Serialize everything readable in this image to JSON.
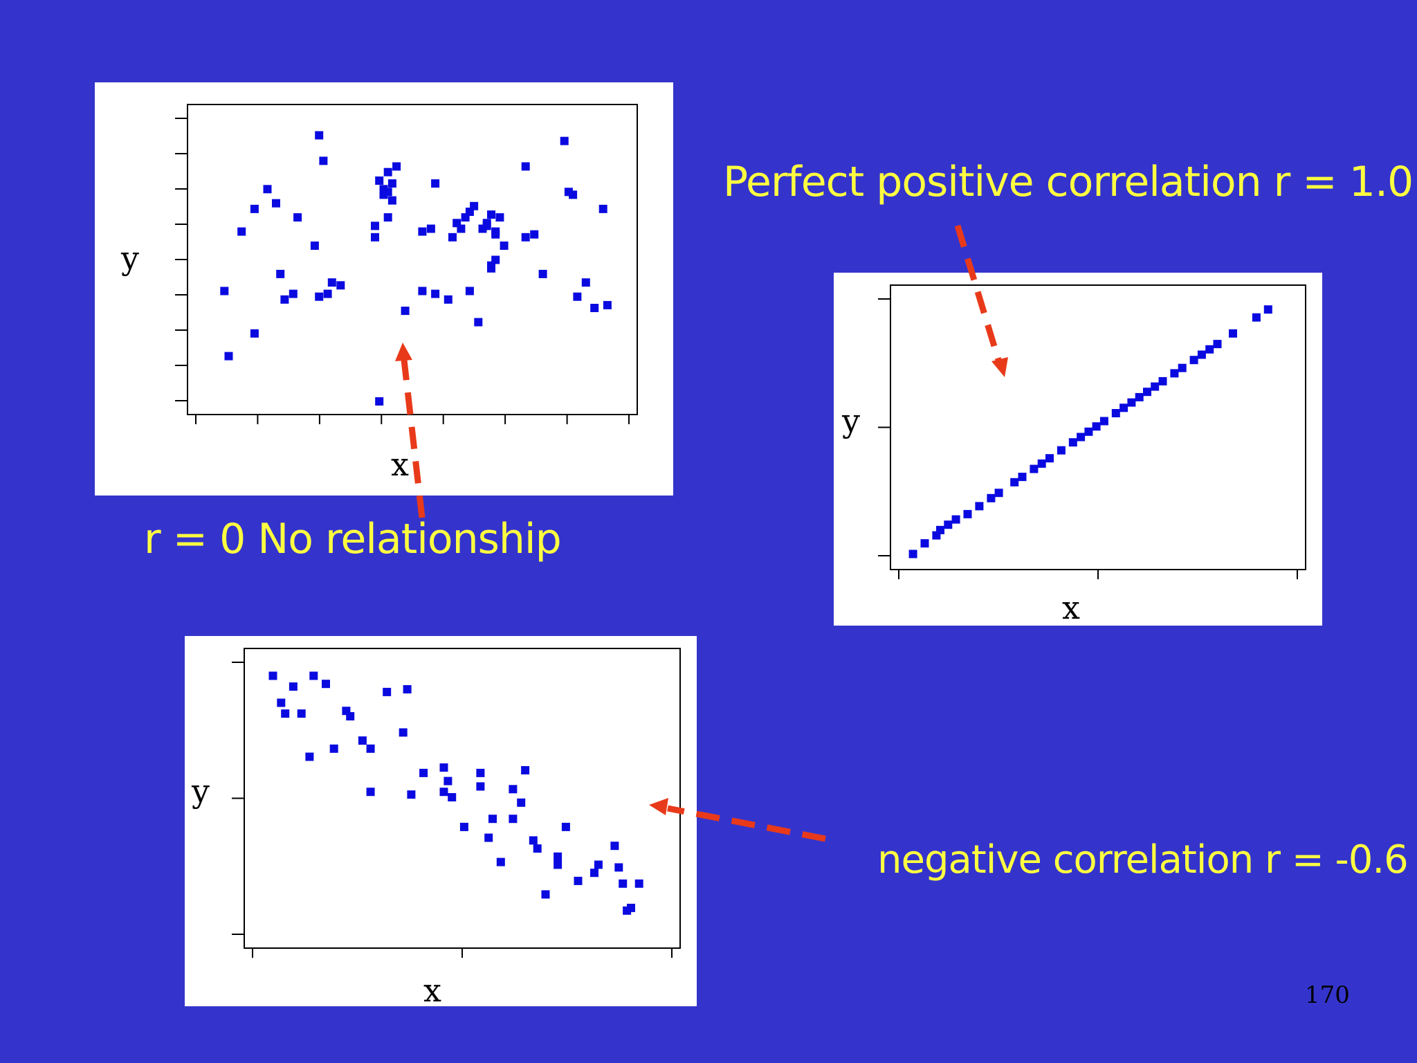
{
  "colors": {
    "background": "#3434cc",
    "panel": "#ffffff",
    "points": "#0a0ae0",
    "caption_text": "#ffff40",
    "arrow": "#e83a1a"
  },
  "captions": {
    "no_relationship": "r = 0 No relationship",
    "perfect_positive": "Perfect positive correlation r = 1.0",
    "negative": "negative correlation r = -0.6"
  },
  "page_number": "170",
  "chart_data": [
    {
      "type": "scatter",
      "xlabel": "x",
      "ylabel": "y",
      "xlim": [
        0,
        10
      ],
      "ylim": [
        0,
        10
      ],
      "grid": false,
      "x": [
        0.6,
        0.7,
        1.0,
        1.3,
        1.6,
        1.8,
        1.9,
        1.3,
        2.0,
        2.2,
        2.3,
        2.7,
        2.8,
        2.8,
        2.9,
        3.0,
        3.1,
        3.3,
        4.1,
        4.1,
        4.2,
        4.3,
        4.4,
        4.4,
        4.4,
        4.5,
        4.6,
        4.8,
        4.3,
        4.2,
        4.5,
        5.2,
        5.4,
        5.5,
        5.2,
        5.5,
        5.8,
        5.9,
        6.0,
        6.1,
        6.2,
        6.3,
        6.4,
        6.6,
        6.7,
        6.8,
        6.9,
        6.3,
        6.9,
        7.0,
        7.1,
        6.9,
        6.8,
        6.5,
        6.7,
        6.8,
        7.6,
        7.6,
        7.8,
        8.0,
        8.5,
        8.6,
        8.7,
        8.8,
        9.0,
        9.2,
        9.4,
        9.5
      ],
      "y": [
        3.9,
        1.6,
        6.0,
        6.8,
        7.5,
        7.0,
        4.5,
        2.4,
        3.6,
        3.8,
        6.5,
        5.5,
        9.4,
        3.7,
        8.5,
        3.8,
        4.2,
        4.1,
        6.2,
        5.8,
        7.8,
        7.3,
        8.1,
        7.4,
        6.5,
        7.1,
        8.3,
        3.2,
        7.5,
        0.0,
        7.7,
        6.0,
        6.1,
        7.7,
        3.9,
        3.8,
        3.6,
        5.8,
        6.3,
        6.1,
        6.5,
        6.7,
        6.9,
        6.1,
        6.3,
        6.6,
        5.9,
        3.9,
        6.0,
        6.5,
        5.5,
        5.0,
        4.8,
        2.8,
        6.2,
        4.7,
        8.3,
        5.8,
        5.9,
        4.5,
        9.2,
        7.4,
        7.3,
        3.7,
        4.2,
        3.3,
        6.8,
        3.4
      ]
    },
    {
      "type": "scatter",
      "xlabel": "x",
      "ylabel": "y",
      "xlim": [
        0,
        10
      ],
      "ylim": [
        0,
        10
      ],
      "grid": false,
      "x": [
        0.4,
        0.7,
        1.0,
        1.1,
        1.3,
        1.5,
        1.8,
        2.1,
        2.4,
        2.6,
        3.0,
        3.2,
        3.5,
        3.7,
        3.9,
        4.2,
        4.5,
        4.7,
        4.9,
        5.1,
        5.3,
        5.6,
        5.8,
        6.0,
        6.2,
        6.4,
        6.6,
        6.8,
        7.1,
        7.3,
        7.6,
        7.8,
        8.0,
        8.2,
        8.6,
        9.2,
        9.5
      ],
      "y": [
        0.3,
        0.7,
        1.0,
        1.2,
        1.4,
        1.6,
        1.8,
        2.1,
        2.4,
        2.6,
        3.0,
        3.2,
        3.5,
        3.7,
        3.9,
        4.2,
        4.5,
        4.7,
        4.9,
        5.1,
        5.3,
        5.6,
        5.8,
        6.0,
        6.2,
        6.4,
        6.6,
        6.8,
        7.1,
        7.3,
        7.6,
        7.8,
        8.0,
        8.2,
        8.6,
        9.2,
        9.5
      ]
    },
    {
      "type": "scatter",
      "xlabel": "x",
      "ylabel": "y",
      "xlim": [
        0,
        10
      ],
      "ylim": [
        0,
        10
      ],
      "grid": false,
      "x": [
        0.4,
        0.6,
        0.9,
        1.1,
        0.7,
        1.4,
        1.7,
        2.2,
        2.3,
        1.3,
        1.9,
        2.6,
        2.8,
        3.2,
        3.7,
        3.6,
        2.8,
        3.8,
        4.1,
        4.6,
        4.6,
        4.7,
        5.5,
        5.5,
        4.8,
        5.7,
        6.0,
        6.6,
        6.5,
        6.3,
        5.1,
        5.8,
        6.3,
        6.8,
        6.9,
        7.4,
        7.4,
        7.6,
        7.9,
        8.3,
        8.4,
        8.8,
        8.9,
        9.0,
        9.2,
        9.4,
        9.1,
        7.1
      ],
      "y": [
        9.5,
        8.5,
        9.1,
        8.1,
        8.1,
        9.5,
        9.2,
        8.2,
        8.0,
        6.5,
        6.8,
        7.1,
        6.8,
        8.9,
        9.0,
        7.4,
        5.2,
        5.1,
        5.9,
        6.1,
        5.2,
        5.6,
        5.9,
        5.4,
        5.0,
        3.5,
        2.6,
        6.0,
        4.8,
        5.3,
        3.9,
        4.2,
        4.2,
        3.4,
        3.1,
        2.5,
        2.8,
        3.9,
        1.9,
        2.2,
        2.5,
        3.2,
        2.4,
        1.8,
        0.9,
        1.8,
        0.8,
        1.4
      ]
    }
  ]
}
